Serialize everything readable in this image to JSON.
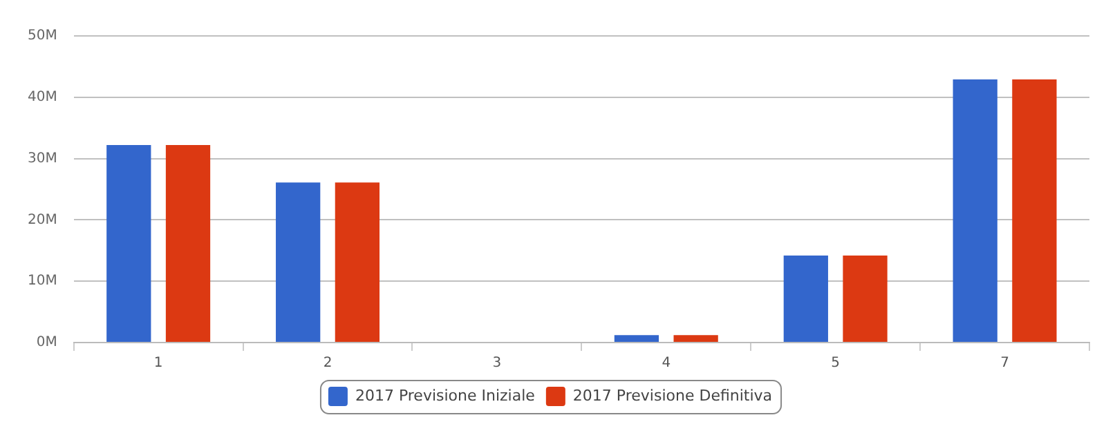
{
  "chart_data": {
    "type": "bar",
    "categories": [
      "1",
      "2",
      "3",
      "4",
      "5",
      "7"
    ],
    "series": [
      {
        "name": "2017 Previsione Iniziale",
        "color": "#3366cc",
        "values": [
          32.2,
          26.1,
          0,
          1.2,
          14.2,
          42.9
        ]
      },
      {
        "name": "2017 Previsione Definitiva",
        "color": "#dc3912",
        "values": [
          32.2,
          26.1,
          0,
          1.2,
          14.2,
          42.9
        ]
      }
    ],
    "ylim": [
      0,
      50
    ],
    "yticks": [
      {
        "value": 0,
        "label": "0M"
      },
      {
        "value": 10,
        "label": "10M"
      },
      {
        "value": 20,
        "label": "20M"
      },
      {
        "value": 30,
        "label": "30M"
      },
      {
        "value": 40,
        "label": "40M"
      },
      {
        "value": 50,
        "label": "50M"
      }
    ],
    "grid": "y",
    "legend": "bottom"
  }
}
